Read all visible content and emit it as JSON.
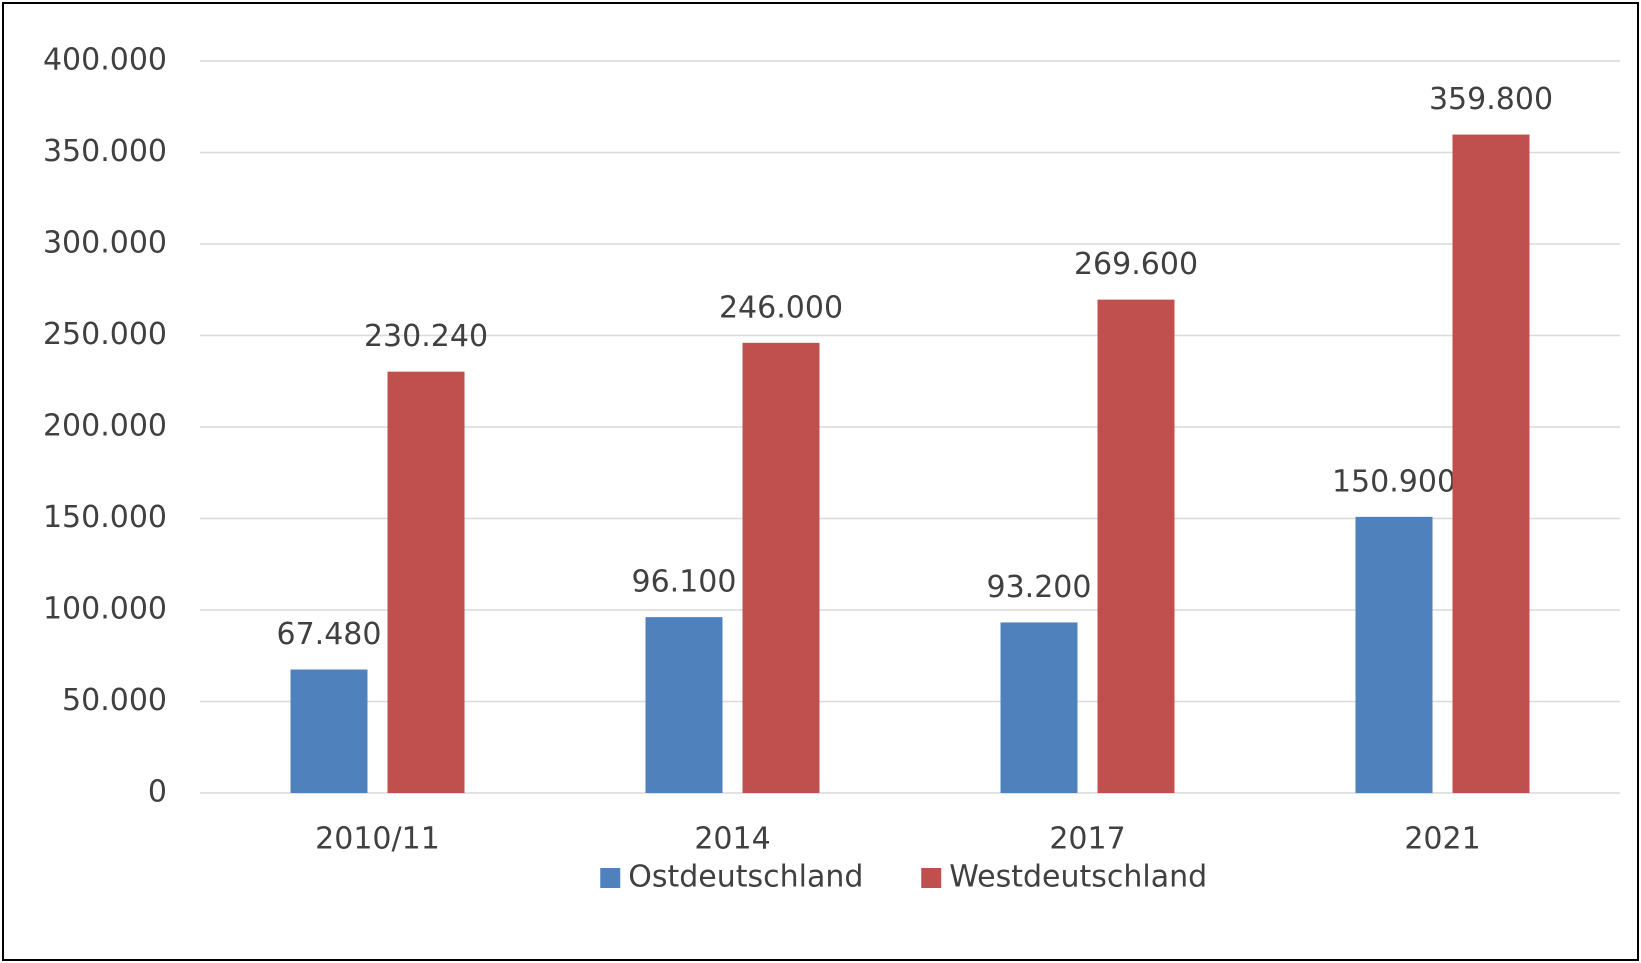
{
  "chart_data": {
    "type": "bar",
    "categories": [
      "2010/11",
      "2014",
      "2017",
      "2021"
    ],
    "series": [
      {
        "name": "Ostdeutschland",
        "color": "#4f81bd",
        "values": [
          67480,
          96100,
          93200,
          150900
        ],
        "value_labels": [
          "67.480",
          "96.100",
          "93.200",
          "150.900"
        ]
      },
      {
        "name": "Westdeutschland",
        "color": "#c0504d",
        "values": [
          230240,
          246000,
          269600,
          359800
        ],
        "value_labels": [
          "230.240",
          "246.000",
          "269.600",
          "359.800"
        ]
      }
    ],
    "ylim": [
      0,
      400000
    ],
    "yticks": [
      0,
      {
        "value": 50000,
        "label": "50.000"
      },
      {
        "value": 100000,
        "label": "100.000"
      },
      {
        "value": 150000,
        "label": "150.000"
      },
      {
        "value": 200000,
        "label": "200.000"
      },
      {
        "value": 250000,
        "label": "250.000"
      },
      {
        "value": 300000,
        "label": "300.000"
      },
      {
        "value": 350000,
        "label": "350.000"
      },
      {
        "value": 400000,
        "label": "400.000"
      }
    ],
    "grid": true,
    "legend": "bottom"
  }
}
